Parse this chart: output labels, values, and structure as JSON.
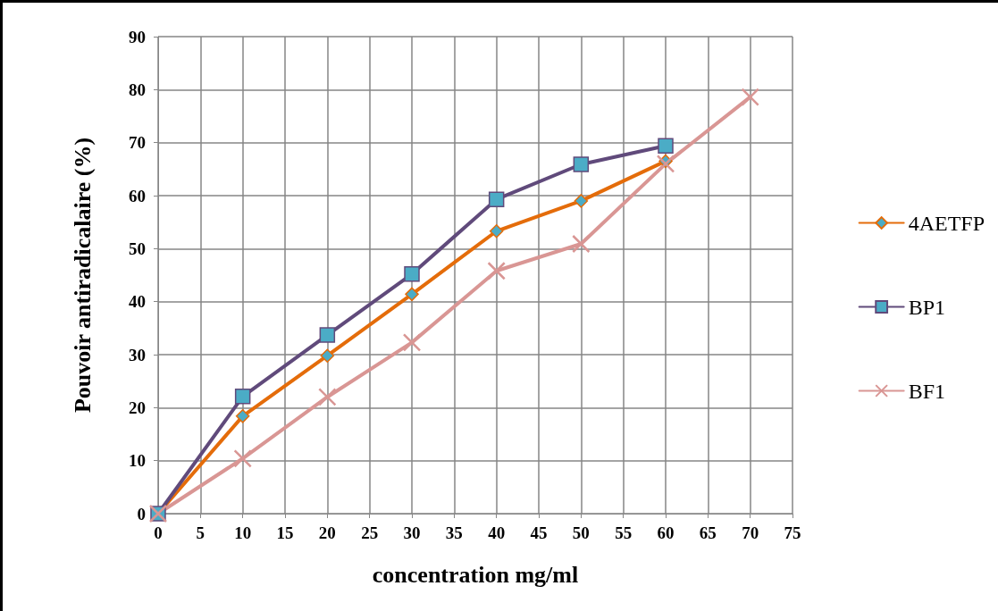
{
  "chart_data": {
    "type": "line",
    "xlabel": "concentration mg/ml",
    "ylabel": "Pouvoir antiradicalaire (%)",
    "xlim": [
      0,
      75
    ],
    "xticks": [
      0,
      5,
      10,
      15,
      20,
      25,
      30,
      35,
      40,
      45,
      50,
      55,
      60,
      65,
      70,
      75
    ],
    "ylim": [
      0,
      90
    ],
    "yticks": [
      0,
      10,
      20,
      30,
      40,
      50,
      60,
      70,
      80,
      90
    ],
    "grid": true,
    "legend": "right",
    "series": [
      {
        "name": "4AETFP",
        "color": "#e46c0a",
        "marker": "diamond",
        "x": [
          0,
          10,
          20,
          30,
          40,
          50,
          60
        ],
        "values": [
          0,
          18.4,
          29.8,
          41.4,
          53.3,
          59,
          66.5
        ]
      },
      {
        "name": "BP1",
        "color": "#604a7b",
        "marker": "square",
        "x": [
          0,
          10,
          20,
          30,
          40,
          50,
          60
        ],
        "values": [
          0,
          22.1,
          33.7,
          45.2,
          59.3,
          65.9,
          69.4
        ]
      },
      {
        "name": "BF1",
        "color": "#d99694",
        "marker": "cross",
        "x": [
          0,
          10,
          20,
          30,
          40,
          50,
          60,
          70
        ],
        "values": [
          0,
          10.4,
          22,
          32.3,
          45.8,
          50.9,
          66,
          78.6
        ]
      }
    ]
  }
}
